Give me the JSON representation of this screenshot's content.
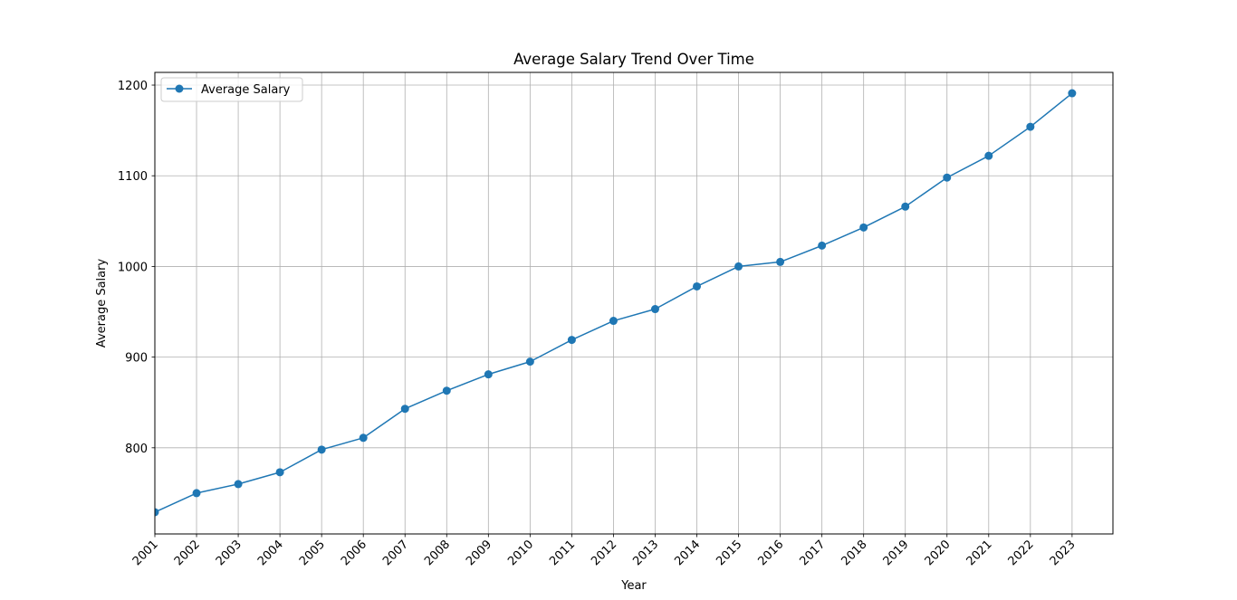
{
  "chart_data": {
    "type": "line",
    "title": "Average Salary Trend Over Time",
    "xlabel": "Year",
    "ylabel": "Average Salary",
    "x": [
      2001,
      2002,
      2003,
      2004,
      2005,
      2006,
      2007,
      2008,
      2009,
      2010,
      2011,
      2012,
      2013,
      2014,
      2015,
      2016,
      2017,
      2018,
      2019,
      2020,
      2021,
      2022,
      2023
    ],
    "series": [
      {
        "name": "Average Salary",
        "values": [
          729,
          750,
          760,
          773,
          798,
          811,
          843,
          863,
          881,
          895,
          919,
          940,
          953,
          978,
          1000,
          1005,
          1023,
          1043,
          1066,
          1098,
          1122,
          1154,
          1191
        ],
        "color": "#1f77b4",
        "marker": "circle"
      }
    ],
    "xlim": [
      2001,
      2023.98
    ],
    "ylim": [
      705,
      1214
    ],
    "xticks": [
      "2001",
      "2002",
      "2003",
      "2004",
      "2005",
      "2006",
      "2007",
      "2008",
      "2009",
      "2010",
      "2011",
      "2012",
      "2013",
      "2014",
      "2015",
      "2016",
      "2017",
      "2018",
      "2019",
      "2020",
      "2021",
      "2022",
      "2023"
    ],
    "yticks": [
      800,
      900,
      1000,
      1100,
      1200
    ],
    "xtick_rotation": 45,
    "grid": true,
    "legend_position": "top-left"
  }
}
